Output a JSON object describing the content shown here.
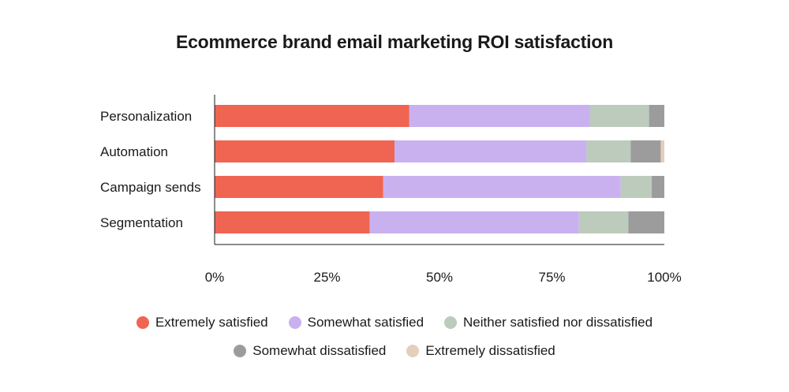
{
  "chart_data": {
    "type": "bar",
    "orientation": "horizontal",
    "stacked": true,
    "title": "Ecommerce brand email marketing ROI satisfaction",
    "categories": [
      "Personalization",
      "Automation",
      "Campaign sends",
      "Segmentation"
    ],
    "series": [
      {
        "name": "Extremely satisfied",
        "color": "#f06452",
        "values": [
          43.3,
          40.0,
          37.5,
          34.5
        ]
      },
      {
        "name": "Somewhat satisfied",
        "color": "#c9b1f0",
        "values": [
          40.2,
          42.7,
          52.8,
          46.5
        ]
      },
      {
        "name": "Neither satisfied nor dissatisfied",
        "color": "#bdcbbd",
        "values": [
          13.1,
          9.8,
          6.9,
          11.0
        ]
      },
      {
        "name": "Somewhat dissatisfied",
        "color": "#9c9c9c",
        "values": [
          3.4,
          6.7,
          2.8,
          8.0
        ]
      },
      {
        "name": "Extremely dissatisfied",
        "color": "#e3cfba",
        "values": [
          0.0,
          0.8,
          0.0,
          0.0
        ]
      }
    ],
    "xlim": [
      0,
      100
    ],
    "x_ticks": [
      "0%",
      "25%",
      "50%",
      "75%",
      "100%"
    ],
    "grid": false,
    "legend_position": "bottom"
  }
}
